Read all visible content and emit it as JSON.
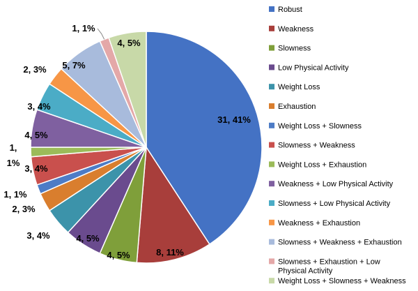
{
  "chart_data": {
    "type": "pie",
    "title": "",
    "slices": [
      {
        "name": "Robust",
        "count": 31,
        "percent": 41,
        "label": "31, 41%",
        "color": "#4472C4"
      },
      {
        "name": "Weakness",
        "count": 8,
        "percent": 11,
        "label": "8, 11%",
        "color": "#A83E3B"
      },
      {
        "name": "Slowness",
        "count": 4,
        "percent": 5,
        "label": "4, 5%",
        "color": "#7F9F3A"
      },
      {
        "name": "Low Physical Activity",
        "count": 4,
        "percent": 5,
        "label": "4, 5%",
        "color": "#6A4B8E"
      },
      {
        "name": "Weight Loss",
        "count": 3,
        "percent": 4,
        "label": "3, 4%",
        "color": "#3C93AA"
      },
      {
        "name": "Exhaustion",
        "count": 2,
        "percent": 3,
        "label": "2, 3%",
        "color": "#D97E2E"
      },
      {
        "name": "Weight Loss + Slowness",
        "count": 1,
        "percent": 1,
        "label": "1, 1%",
        "color": "#4D7CC6"
      },
      {
        "name": "Slowness + Weakness",
        "count": 3,
        "percent": 4,
        "label": "3, 4%",
        "color": "#C9504D"
      },
      {
        "name": "Weight Loss + Exhaustion",
        "count": 1,
        "percent": 1,
        "label": "1, 1%",
        "color": "#9BBB59"
      },
      {
        "name": "Weakness + Low Physical Activity",
        "count": 4,
        "percent": 5,
        "label": "4, 5%",
        "color": "#7F60A0"
      },
      {
        "name": "Slowness + Low Physical Activity",
        "count": 3,
        "percent": 4,
        "label": "3, 4%",
        "color": "#4BACC6"
      },
      {
        "name": "Weakness + Exhaustion",
        "count": 2,
        "percent": 3,
        "label": "2, 3%",
        "color": "#F79646"
      },
      {
        "name": "Slowness + Weakness + Exhaustion",
        "count": 5,
        "percent": 7,
        "label": "5, 7%",
        "color": "#A8BBDC"
      },
      {
        "name": "Slowness + Exhaustion + Low Physical Activity",
        "count": 1,
        "percent": 1,
        "label": "1, 1%",
        "color": "#E4A8A8"
      },
      {
        "name": "Weight Loss + Slowness + Weakness",
        "count": 4,
        "percent": 5,
        "label": "4, 5%",
        "color": "#C8D9A8"
      }
    ],
    "legend_position": "right"
  }
}
